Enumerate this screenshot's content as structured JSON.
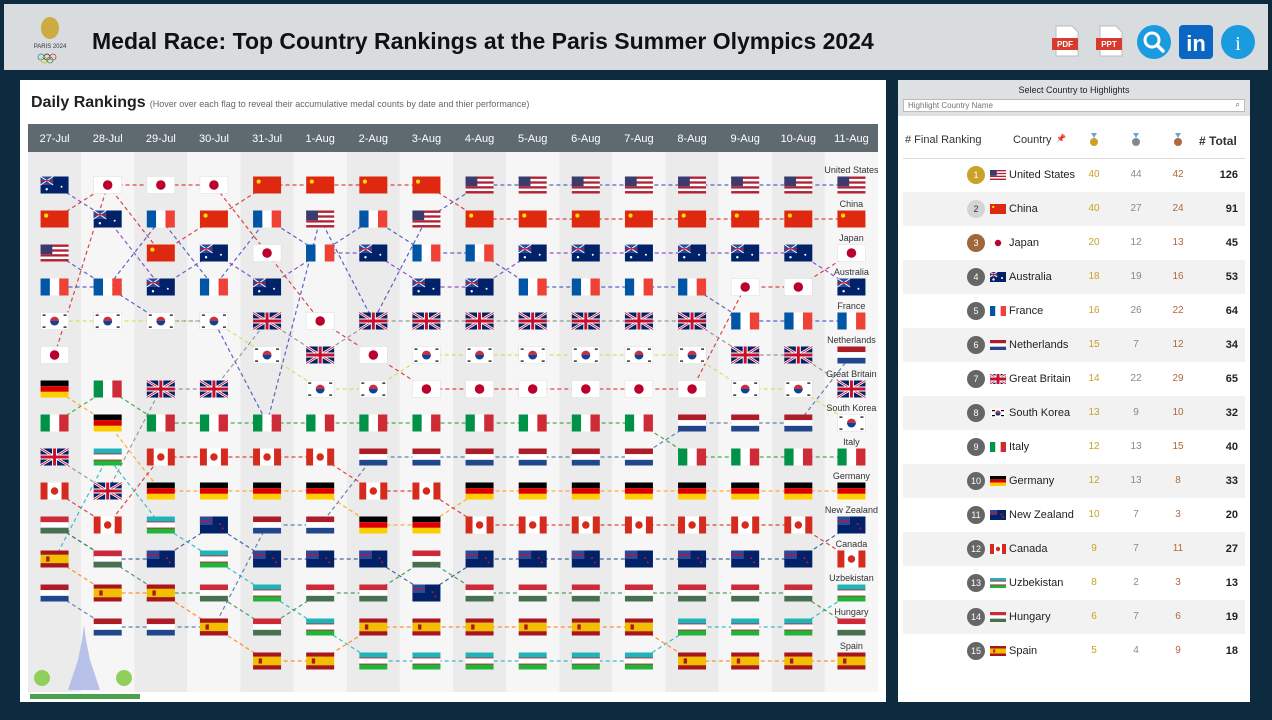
{
  "header": {
    "title": "Medal Race: Top Country Rankings at the Paris Summer Olympics 2024",
    "logo_text": "PARIS 2024",
    "buttons": [
      {
        "label": "PDF",
        "icon": "pdf-icon",
        "color": "#d83b2b"
      },
      {
        "label": "PPT",
        "icon": "ppt-icon",
        "color": "#d83b2b"
      },
      {
        "label": "",
        "icon": "search-icon",
        "color": "#1a9be0"
      },
      {
        "label": "in",
        "icon": "linkedin-icon",
        "color": "#0a66c2"
      },
      {
        "label": "i",
        "icon": "info-icon",
        "color": "#1a9be0"
      }
    ]
  },
  "daily": {
    "title": "Daily Rankings",
    "subtitle": "(Hover over each flag to reveal their accumulative medal counts by date and thier performance)"
  },
  "chart_data": {
    "type": "table",
    "dates": [
      "27-Jul",
      "28-Jul",
      "29-Jul",
      "30-Jul",
      "31-Jul",
      "1-Aug",
      "2-Aug",
      "3-Aug",
      "4-Aug",
      "5-Aug",
      "6-Aug",
      "7-Aug",
      "8-Aug",
      "9-Aug",
      "10-Aug",
      "11-Aug"
    ],
    "series": [
      {
        "name": "United States",
        "flag": "usa",
        "ranks": [
          3,
          4,
          5,
          5,
          8,
          2,
          5,
          2,
          1,
          1,
          1,
          1,
          1,
          1,
          1,
          1
        ]
      },
      {
        "name": "China",
        "flag": "china",
        "ranks": [
          2,
          1,
          3,
          2,
          1,
          1,
          1,
          1,
          2,
          2,
          2,
          2,
          2,
          2,
          2,
          2
        ]
      },
      {
        "name": "Japan",
        "flag": "japan",
        "ranks": [
          6,
          1,
          1,
          1,
          3,
          5,
          6,
          7,
          7,
          7,
          7,
          7,
          7,
          4,
          4,
          3
        ]
      },
      {
        "name": "Australia",
        "flag": "australia",
        "ranks": [
          1,
          2,
          4,
          3,
          4,
          3,
          3,
          4,
          4,
          3,
          3,
          3,
          3,
          3,
          3,
          4
        ]
      },
      {
        "name": "France",
        "flag": "france",
        "ranks": [
          4,
          4,
          2,
          4,
          2,
          3,
          2,
          3,
          3,
          4,
          4,
          4,
          4,
          5,
          5,
          5
        ]
      },
      {
        "name": "Netherlands",
        "flag": "netherlands",
        "ranks": [
          13,
          14,
          14,
          14,
          11,
          11,
          9,
          9,
          9,
          9,
          9,
          9,
          8,
          8,
          8,
          6
        ]
      },
      {
        "name": "Great Britain",
        "flag": "gb",
        "ranks": [
          9,
          10,
          7,
          7,
          5,
          6,
          5,
          5,
          5,
          5,
          5,
          5,
          5,
          6,
          6,
          7
        ]
      },
      {
        "name": "South Korea",
        "flag": "korea",
        "ranks": [
          5,
          5,
          5,
          5,
          6,
          7,
          7,
          6,
          6,
          6,
          6,
          6,
          6,
          7,
          7,
          8
        ]
      },
      {
        "name": "Italy",
        "flag": "italy",
        "ranks": [
          8,
          7,
          8,
          8,
          8,
          8,
          8,
          8,
          8,
          8,
          8,
          8,
          9,
          9,
          9,
          9
        ]
      },
      {
        "name": "Germany",
        "flag": "germany",
        "ranks": [
          7,
          8,
          10,
          10,
          10,
          10,
          11,
          11,
          10,
          10,
          10,
          10,
          10,
          10,
          10,
          10
        ]
      },
      {
        "name": "New Zealand",
        "flag": "nz",
        "ranks": [
          11,
          12,
          12,
          11,
          12,
          12,
          12,
          13,
          12,
          12,
          12,
          12,
          12,
          12,
          12,
          11
        ]
      },
      {
        "name": "Canada",
        "flag": "canada",
        "ranks": [
          10,
          11,
          9,
          9,
          9,
          9,
          10,
          10,
          11,
          11,
          11,
          11,
          11,
          11,
          11,
          12
        ]
      },
      {
        "name": "Uzbekistan",
        "flag": "uzbekistan",
        "ranks": [
          12,
          9,
          11,
          12,
          13,
          14,
          15,
          15,
          15,
          15,
          15,
          15,
          14,
          14,
          14,
          13
        ]
      },
      {
        "name": "Hungary",
        "flag": "hungary",
        "ranks": [
          11,
          12,
          13,
          13,
          14,
          13,
          13,
          12,
          13,
          13,
          13,
          13,
          13,
          13,
          13,
          14
        ]
      },
      {
        "name": "Spain",
        "flag": "spain",
        "ranks": [
          12,
          13,
          13,
          14,
          15,
          15,
          14,
          14,
          14,
          14,
          14,
          14,
          15,
          15,
          15,
          15
        ]
      }
    ]
  },
  "select": {
    "label": "Select Country to Highlights",
    "placeholder": "Highlight Country Name"
  },
  "table": {
    "headers": {
      "rank": "# Final Ranking",
      "country": "Country",
      "total": "# Total"
    },
    "gold_color": "#c9a227",
    "silver_color": "#888888",
    "bronze_color": "#b0693a",
    "rows": [
      {
        "rank": "1",
        "country": "United States",
        "flag": "usa",
        "gold": "40",
        "silver": "44",
        "bronze": "42",
        "total": "126",
        "badge": "#c9a227"
      },
      {
        "rank": "2",
        "country": "China",
        "flag": "china",
        "gold": "40",
        "silver": "27",
        "bronze": "24",
        "total": "91",
        "badge": "#d4d4d4"
      },
      {
        "rank": "3",
        "country": "Japan",
        "flag": "japan_dot",
        "gold": "20",
        "silver": "12",
        "bronze": "13",
        "total": "45",
        "badge": "#a0673a"
      },
      {
        "rank": "4",
        "country": "Australia",
        "flag": "australia",
        "gold": "18",
        "silver": "19",
        "bronze": "16",
        "total": "53",
        "badge": "#666666"
      },
      {
        "rank": "5",
        "country": "France",
        "flag": "france",
        "gold": "16",
        "silver": "26",
        "bronze": "22",
        "total": "64",
        "badge": "#666666"
      },
      {
        "rank": "6",
        "country": "Netherlands",
        "flag": "netherlands",
        "gold": "15",
        "silver": "7",
        "bronze": "12",
        "total": "34",
        "badge": "#666666"
      },
      {
        "rank": "7",
        "country": "Great Britain",
        "flag": "gb",
        "gold": "14",
        "silver": "22",
        "bronze": "29",
        "total": "65",
        "badge": "#666666"
      },
      {
        "rank": "8",
        "country": "South Korea",
        "flag": "korea",
        "gold": "13",
        "silver": "9",
        "bronze": "10",
        "total": "32",
        "badge": "#666666"
      },
      {
        "rank": "9",
        "country": "Italy",
        "flag": "italy",
        "gold": "12",
        "silver": "13",
        "bronze": "15",
        "total": "40",
        "badge": "#666666"
      },
      {
        "rank": "10",
        "country": "Germany",
        "flag": "germany",
        "gold": "12",
        "silver": "13",
        "bronze": "8",
        "total": "33",
        "badge": "#666666"
      },
      {
        "rank": "11",
        "country": "New Zealand",
        "flag": "nz",
        "gold": "10",
        "silver": "7",
        "bronze": "3",
        "total": "20",
        "badge": "#666666"
      },
      {
        "rank": "12",
        "country": "Canada",
        "flag": "canada",
        "gold": "9",
        "silver": "7",
        "bronze": "11",
        "total": "27",
        "badge": "#666666"
      },
      {
        "rank": "13",
        "country": "Uzbekistan",
        "flag": "uzbekistan",
        "gold": "8",
        "silver": "2",
        "bronze": "3",
        "total": "13",
        "badge": "#666666"
      },
      {
        "rank": "14",
        "country": "Hungary",
        "flag": "hungary",
        "gold": "6",
        "silver": "7",
        "bronze": "6",
        "total": "19",
        "badge": "#666666"
      },
      {
        "rank": "15",
        "country": "Spain",
        "flag": "spain",
        "gold": "5",
        "silver": "4",
        "bronze": "9",
        "total": "18",
        "badge": "#666666"
      }
    ]
  }
}
